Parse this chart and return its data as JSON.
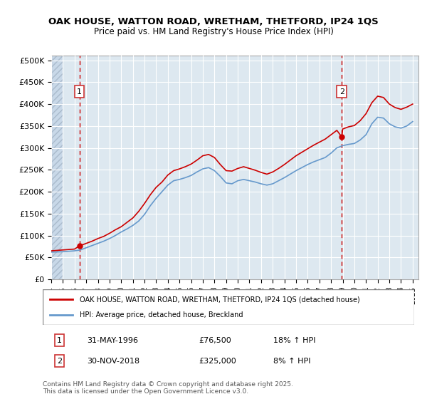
{
  "title_line1": "OAK HOUSE, WATTON ROAD, WRETHAM, THETFORD, IP24 1QS",
  "title_line2": "Price paid vs. HM Land Registry's House Price Index (HPI)",
  "ylabel_ticks": [
    "£0",
    "£50K",
    "£100K",
    "£150K",
    "£200K",
    "£250K",
    "£300K",
    "£350K",
    "£400K",
    "£450K",
    "£500K"
  ],
  "ytick_values": [
    0,
    50000,
    100000,
    150000,
    200000,
    250000,
    300000,
    350000,
    400000,
    450000,
    500000
  ],
  "ylim": [
    0,
    510000
  ],
  "xlim_start": 1994.0,
  "xlim_end": 2025.5,
  "background_color": "#dde8f0",
  "hatch_color": "#c8d8e8",
  "grid_color": "#ffffff",
  "line1_color": "#cc0000",
  "line2_color": "#6699cc",
  "sale1_x": 1996.42,
  "sale1_y": 76500,
  "sale2_x": 2018.92,
  "sale2_y": 325000,
  "marker1_label": "1",
  "marker2_label": "2",
  "legend_line1": "OAK HOUSE, WATTON ROAD, WRETHAM, THETFORD, IP24 1QS (detached house)",
  "legend_line2": "HPI: Average price, detached house, Breckland",
  "table_row1": [
    "1",
    "31-MAY-1996",
    "£76,500",
    "18% ↑ HPI"
  ],
  "table_row2": [
    "2",
    "30-NOV-2018",
    "£325,000",
    "8% ↑ HPI"
  ],
  "footnote": "Contains HM Land Registry data © Crown copyright and database right 2025.\nThis data is licensed under the Open Government Licence v3.0.",
  "hpi_data_x": [
    1994.0,
    1994.5,
    1995.0,
    1995.5,
    1996.0,
    1996.5,
    1997.0,
    1997.5,
    1998.0,
    1998.5,
    1999.0,
    1999.5,
    2000.0,
    2000.5,
    2001.0,
    2001.5,
    2002.0,
    2002.5,
    2003.0,
    2003.5,
    2004.0,
    2004.5,
    2005.0,
    2005.5,
    2006.0,
    2006.5,
    2007.0,
    2007.5,
    2008.0,
    2008.5,
    2009.0,
    2009.5,
    2010.0,
    2010.5,
    2011.0,
    2011.5,
    2012.0,
    2012.5,
    2013.0,
    2013.5,
    2014.0,
    2014.5,
    2015.0,
    2015.5,
    2016.0,
    2016.5,
    2017.0,
    2017.5,
    2018.0,
    2018.5,
    2019.0,
    2019.5,
    2020.0,
    2020.5,
    2021.0,
    2021.5,
    2022.0,
    2022.5,
    2023.0,
    2023.5,
    2024.0,
    2024.5,
    2025.0
  ],
  "hpi_data_y": [
    62000,
    62500,
    63000,
    64000,
    65000,
    67000,
    72000,
    77000,
    82000,
    87000,
    93000,
    100000,
    108000,
    115000,
    123000,
    133000,
    148000,
    168000,
    185000,
    200000,
    215000,
    225000,
    228000,
    232000,
    237000,
    245000,
    252000,
    255000,
    248000,
    235000,
    220000,
    218000,
    225000,
    228000,
    225000,
    222000,
    218000,
    215000,
    218000,
    225000,
    232000,
    240000,
    248000,
    255000,
    262000,
    268000,
    273000,
    278000,
    288000,
    300000,
    305000,
    308000,
    310000,
    318000,
    330000,
    355000,
    370000,
    368000,
    355000,
    348000,
    345000,
    350000,
    360000
  ],
  "price_data_x": [
    1994.0,
    1994.5,
    1995.0,
    1995.5,
    1996.0,
    1996.42,
    1996.5,
    1997.0,
    1997.5,
    1998.0,
    1998.5,
    1999.0,
    1999.5,
    2000.0,
    2000.5,
    2001.0,
    2001.5,
    2002.0,
    2002.5,
    2003.0,
    2003.5,
    2004.0,
    2004.5,
    2005.0,
    2005.5,
    2006.0,
    2006.5,
    2007.0,
    2007.5,
    2008.0,
    2008.5,
    2009.0,
    2009.5,
    2010.0,
    2010.5,
    2011.0,
    2011.5,
    2012.0,
    2012.5,
    2013.0,
    2013.5,
    2014.0,
    2014.5,
    2015.0,
    2015.5,
    2016.0,
    2016.5,
    2017.0,
    2017.5,
    2018.0,
    2018.5,
    2018.92,
    2019.0,
    2019.5,
    2020.0,
    2020.5,
    2021.0,
    2021.5,
    2022.0,
    2022.5,
    2023.0,
    2023.5,
    2024.0,
    2024.5,
    2025.0
  ],
  "price_data_y": [
    65000,
    66000,
    67000,
    68000,
    69000,
    76500,
    77000,
    82000,
    87000,
    93000,
    98000,
    105000,
    113000,
    120000,
    130000,
    140000,
    155000,
    173000,
    193000,
    210000,
    222000,
    238000,
    248000,
    252000,
    257000,
    263000,
    272000,
    282000,
    285000,
    278000,
    262000,
    248000,
    247000,
    253000,
    257000,
    253000,
    249000,
    244000,
    240000,
    245000,
    253000,
    262000,
    272000,
    282000,
    290000,
    298000,
    306000,
    313000,
    320000,
    330000,
    340000,
    325000,
    343000,
    348000,
    351000,
    362000,
    378000,
    403000,
    418000,
    415000,
    400000,
    392000,
    388000,
    393000,
    400000
  ]
}
